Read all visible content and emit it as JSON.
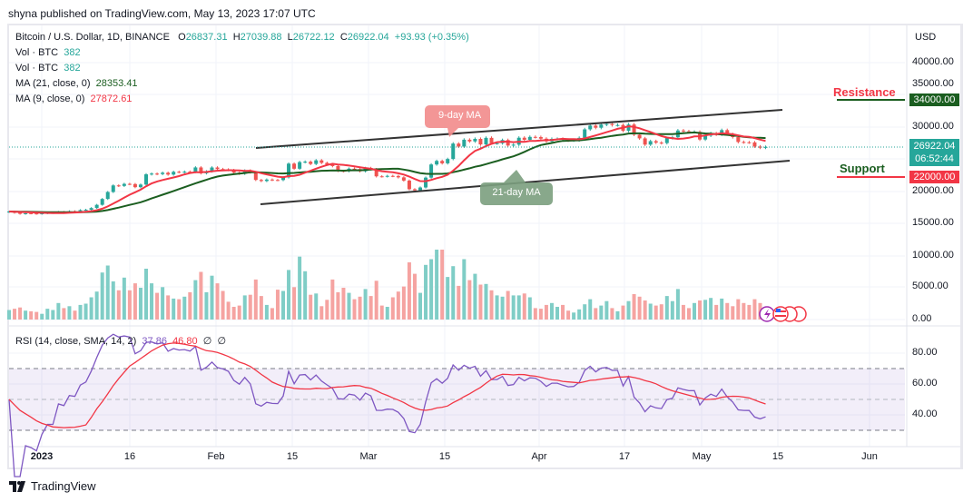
{
  "publisher_line": "shyna published on TradingView.com, May 13, 2023 17:07 UTC",
  "header": {
    "symbol": "Bitcoin / U.S. Dollar, 1D, BINANCE",
    "open_label": "O",
    "open": "26837.31",
    "high_label": "H",
    "high": "27039.88",
    "low_label": "L",
    "low": "26722.12",
    "close_label": "C",
    "close": "26922.04",
    "change": "+93.93 (+0.35%)",
    "vol1_label": "Vol · BTC",
    "vol1": "382",
    "vol2_label": "Vol · BTC",
    "vol2": "382",
    "ma21_label": "MA (21, close, 0)",
    "ma21": "28353.41",
    "ma9_label": "MA (9, close, 0)",
    "ma9": "27872.61",
    "rsi_label": "RSI (14, close, SMA, 14, 2)",
    "rsi": "37.86",
    "rsi_sma": "46.80",
    "rsi_extra1": "∅",
    "rsi_extra2": "∅"
  },
  "price_axis": {
    "currency": "USD",
    "ticks": [
      "40000.00",
      "35000.00",
      "30000.00",
      "20000.00",
      "15000.00",
      "10000.00",
      "5000.00",
      "0.00"
    ],
    "rsi_ticks": [
      "80.00",
      "60.00",
      "40.00"
    ],
    "resistance_tag": "34000.00",
    "support_tag": "22000.00",
    "last_price_tag": "26922.04",
    "countdown": "06:52:44"
  },
  "annotations": {
    "resistance": "Resistance",
    "support": "Support",
    "ma9_callout": "9-day MA",
    "ma21_callout": "21-day MA"
  },
  "time_axis": [
    "2023",
    "16",
    "Feb",
    "15",
    "Mar",
    "15",
    "Apr",
    "17",
    "May",
    "15",
    "Jun"
  ],
  "branding": "TradingView",
  "colors": {
    "up": "#26a69a",
    "down": "#ef5350",
    "ma21": "#1b5e20",
    "ma9": "#f23645",
    "rsi": "#7e57c2",
    "rsi_sma": "#f23645"
  },
  "chart_data": {
    "type": "candlestick",
    "interval": "1D",
    "start_date": "2022-12-26",
    "end_date": "2023-05-13",
    "closes": [
      16900,
      16700,
      16540,
      16630,
      16600,
      16540,
      16620,
      16680,
      16680,
      16850,
      16830,
      16950,
      16940,
      17120,
      17180,
      17440,
      17940,
      18850,
      19930,
      20950,
      20870,
      21190,
      21160,
      20680,
      21080,
      22670,
      22780,
      22710,
      22920,
      22630,
      23060,
      23010,
      23080,
      23030,
      23740,
      22830,
      23130,
      23730,
      23490,
      23430,
      23330,
      22930,
      22760,
      23260,
      22960,
      21800,
      21630,
      21860,
      21790,
      21780,
      22200,
      24330,
      23540,
      24570,
      24630,
      24280,
      24840,
      24450,
      24190,
      23950,
      23200,
      23160,
      23550,
      23490,
      23140,
      23650,
      23470,
      22360,
      22350,
      22430,
      22410,
      22200,
      21700,
      20360,
      20190,
      20630,
      22160,
      24200,
      24750,
      24380,
      25050,
      27440,
      26970,
      28040,
      27780,
      28170,
      27310,
      28330,
      27490,
      27490,
      27990,
      27140,
      27270,
      28350,
      28030,
      28480,
      28450,
      28200,
      27790,
      28170,
      28170,
      28030,
      27920,
      27950,
      28330,
      29650,
      30230,
      29900,
      30390,
      30480,
      30320,
      30320,
      29430,
      30400,
      28820,
      28250,
      27280,
      27820,
      27590,
      27520,
      28300,
      28420,
      29470,
      29340,
      29240,
      29250,
      28070,
      28680,
      29030,
      28850,
      29530,
      28900,
      28450,
      27690,
      27640,
      27630,
      26990,
      26800,
      26922
    ],
    "volumes": [
      1500,
      1700,
      1900,
      1400,
      1300,
      1200,
      900,
      1700,
      1500,
      2600,
      1800,
      2100,
      1400,
      2300,
      2500,
      3500,
      4400,
      7400,
      8500,
      6000,
      4600,
      6600,
      4600,
      5700,
      5000,
      8000,
      5700,
      4200,
      5100,
      3800,
      3300,
      3200,
      3600,
      4300,
      6200,
      7500,
      4300,
      6900,
      5700,
      4500,
      2800,
      2000,
      2200,
      3800,
      3900,
      6300,
      3700,
      2300,
      1800,
      4700,
      4500,
      7800,
      5100,
      9900,
      7600,
      3900,
      4100,
      2100,
      3100,
      6300,
      4300,
      5000,
      4200,
      3200,
      3600,
      4800,
      3700,
      6100,
      2200,
      2000,
      3500,
      4400,
      5200,
      9000,
      7200,
      4200,
      8600,
      9500,
      11000,
      11000,
      6700,
      8400,
      5300,
      9500,
      6200,
      7200,
      5500,
      5600,
      4600,
      3800,
      3600,
      4500,
      3800,
      3800,
      4100,
      3500,
      1800,
      1700,
      2300,
      2600,
      2000,
      2300,
      1400,
      1100,
      1600,
      2400,
      3200,
      1800,
      2200,
      2900,
      1800,
      1300,
      2200,
      2900,
      4000,
      3600,
      3000,
      2500,
      2200,
      2400,
      3700,
      2900,
      4800,
      2300,
      1800,
      2600,
      3000,
      3100,
      3400,
      2300,
      3300,
      2600,
      2100,
      3200,
      2600,
      2300,
      3200,
      2600,
      382
    ],
    "price_axis_range": [
      0,
      42000
    ],
    "volume_ticks": [
      0,
      5000,
      10000
    ],
    "indicators": [
      "MA 21",
      "MA 9",
      "Volume",
      "RSI 14 with SMA 14"
    ],
    "rsi_bands": [
      30,
      70
    ],
    "resistance_level": 34000,
    "support_level": 22000
  }
}
